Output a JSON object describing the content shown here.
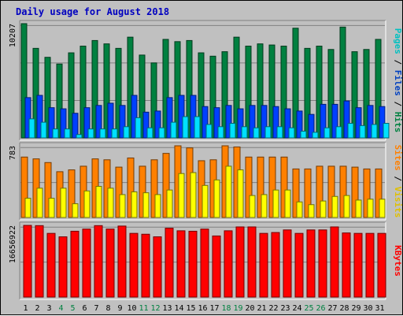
{
  "chart_data": {
    "type": "bar",
    "title": "Daily usage for August 2018",
    "categories": [
      "1",
      "2",
      "3",
      "4",
      "5",
      "6",
      "7",
      "8",
      "9",
      "10",
      "11",
      "12",
      "13",
      "14",
      "15",
      "16",
      "17",
      "18",
      "19",
      "20",
      "21",
      "22",
      "23",
      "24",
      "25",
      "26",
      "27",
      "28",
      "29",
      "30",
      "31"
    ],
    "weekend_days": [
      "4",
      "5",
      "11",
      "12",
      "18",
      "19",
      "25",
      "26"
    ],
    "grid": true,
    "panels": [
      {
        "id": "hits",
        "ymax_label": "10207",
        "ymax": 10207,
        "series": [
          {
            "name": "Hits",
            "color": "#008040",
            "values": [
              10207,
              8000,
              7200,
              6600,
              7600,
              8200,
              8700,
              8400,
              8000,
              9000,
              7400,
              6700,
              8800,
              8600,
              8700,
              7600,
              7300,
              7700,
              9000,
              8200,
              8400,
              8300,
              8200,
              9800,
              8000,
              8200,
              7900,
              9900,
              7700,
              7900,
              8800
            ]
          },
          {
            "name": "Files",
            "color": "#0040ff",
            "values": [
              3600,
              3800,
              2700,
              2600,
              2200,
              2700,
              2900,
              3100,
              2900,
              3800,
              2300,
              2400,
              3600,
              3800,
              3800,
              2800,
              2700,
              2900,
              2600,
              2900,
              2900,
              2800,
              2600,
              2400,
              2100,
              3000,
              3000,
              3300,
              2700,
              2900,
              2800
            ]
          },
          {
            "name": "Pages",
            "color": "#00e0ff",
            "values": [
              1700,
              1400,
              800,
              800,
              300,
              800,
              800,
              800,
              1000,
              1800,
              900,
              900,
              1400,
              1900,
              1900,
              1200,
              1000,
              1300,
              1000,
              900,
              1000,
              1000,
              900,
              600,
              500,
              900,
              1000,
              1300,
              1100,
              1200,
              1300
            ]
          }
        ]
      },
      {
        "id": "visits",
        "ymax_label": "783",
        "ymax": 783,
        "series": [
          {
            "name": "Visits",
            "color": "#ff8000",
            "values": [
              660,
              640,
              600,
              500,
              520,
              560,
              640,
              630,
              550,
              650,
              560,
              630,
              700,
              783,
              760,
              620,
              630,
              783,
              770,
              660,
              660,
              660,
              660,
              530,
              530,
              560,
              560,
              560,
              550,
              530,
              530
            ]
          },
          {
            "name": "Sites",
            "color": "#ffff00",
            "values": [
              210,
              320,
              210,
              320,
              150,
              290,
              340,
              320,
              250,
              280,
              270,
              250,
              300,
              480,
              490,
              350,
              410,
              560,
              520,
              240,
              250,
              300,
              300,
              170,
              140,
              180,
              230,
              240,
              190,
              200,
              200
            ]
          }
        ]
      },
      {
        "id": "kbytes",
        "ymax_label": "16656922",
        "ymax": 16656922,
        "series": [
          {
            "name": "KBytes",
            "color": "#ff0000",
            "values": [
              16656922,
              16600000,
              14800000,
              14000000,
              15300000,
              15800000,
              16600000,
              15800000,
              16500000,
              14800000,
              14600000,
              14000000,
              16000000,
              15400000,
              15300000,
              15800000,
              14200000,
              15400000,
              16300000,
              16300000,
              14800000,
              15000000,
              15600000,
              14800000,
              15600000,
              15600000,
              16300000,
              14900000,
              14800000,
              14800000,
              14800000
            ]
          }
        ]
      }
    ],
    "side_labels": {
      "hits_panel": [
        {
          "text": "Pages",
          "color": "#00c0c0"
        },
        {
          "text": " / ",
          "color": "#000000"
        },
        {
          "text": "Files",
          "color": "#0040c0"
        },
        {
          "text": " / ",
          "color": "#000000"
        },
        {
          "text": "Hits",
          "color": "#008040"
        }
      ],
      "visits_panel": [
        {
          "text": "Sites",
          "color": "#ff8000"
        },
        {
          "text": " / ",
          "color": "#000000"
        },
        {
          "text": "Visits",
          "color": "#e0c000"
        }
      ],
      "kbytes_panel": [
        {
          "text": "KBytes",
          "color": "#ff0000"
        }
      ]
    },
    "colors": {
      "background": "#c0c0c0",
      "title": "#0000c0",
      "weekday_label": "#000000",
      "weekend_label": "#008040"
    }
  }
}
